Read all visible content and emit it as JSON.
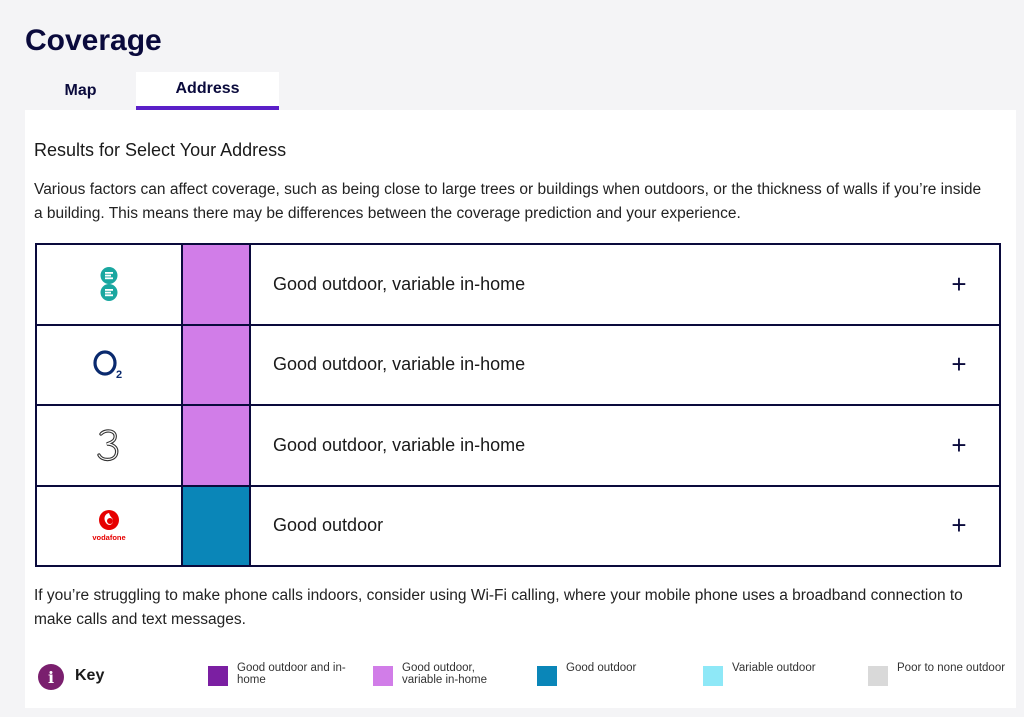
{
  "page": {
    "title": "Coverage"
  },
  "tabs": [
    {
      "label": "Map",
      "active": false
    },
    {
      "label": "Address",
      "active": true
    }
  ],
  "results": {
    "title": "Results for Select Your Address",
    "intro": "Various factors can affect coverage, such as being close to large trees or buildings when outdoors, or the thickness of walls if you’re inside a building. This means there may be differences between the coverage prediction and your experience."
  },
  "operators": [
    {
      "logo": "ee-logo-icon",
      "coverage": "Good outdoor, variable in-home",
      "color": "#d17de8",
      "expand": "+"
    },
    {
      "logo": "o2-logo-icon",
      "coverage": "Good outdoor, variable in-home",
      "color": "#d17de8",
      "expand": "+"
    },
    {
      "logo": "three-logo-icon",
      "coverage": "Good outdoor, variable in-home",
      "color": "#d17de8",
      "expand": "+"
    },
    {
      "logo": "vodafone-logo-icon",
      "logo_text": "vodafone",
      "coverage": "Good outdoor",
      "color": "#0a86b8",
      "expand": "+"
    }
  ],
  "footer_text": "If you’re struggling to make phone calls indoors, consider using Wi-Fi calling, where your mobile phone uses a broadband connection to make calls and text messages.",
  "key": {
    "label": "Key",
    "info_glyph": "i",
    "items": [
      {
        "label": "Good outdoor and in-home",
        "color": "#7b1fa2"
      },
      {
        "label": "Good outdoor, variable in-home",
        "color": "#d17de8"
      },
      {
        "label": "Good outdoor",
        "color": "#0a86b8"
      },
      {
        "label": "Variable outdoor",
        "color": "#8ee8f7"
      },
      {
        "label": "Poor to none outdoor",
        "color": "#d9d9d9"
      }
    ]
  }
}
